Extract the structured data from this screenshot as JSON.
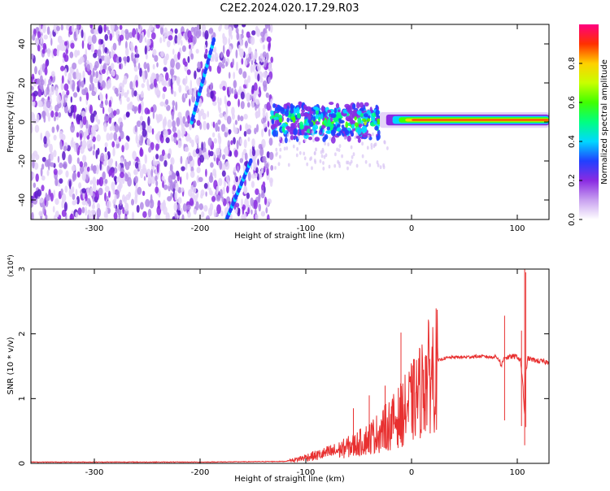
{
  "title": "C2E2.2024.020.17.29.R03",
  "chart_data": [
    {
      "type": "heatmap",
      "xlabel": "Height of straight line (km)",
      "ylabel": "Frequency (Hz)",
      "xlim": [
        -360,
        130
      ],
      "ylim": [
        -50,
        50
      ],
      "x_ticks": [
        -300,
        -200,
        -100,
        0,
        100
      ],
      "y_ticks": [
        -40,
        -20,
        0,
        20,
        40
      ],
      "colorbar": {
        "label": "Normalized spectral amplitude",
        "range": [
          0.0,
          1.0
        ],
        "ticks": [
          0.0,
          0.2,
          0.4,
          0.6,
          0.8
        ],
        "colors": [
          "#ffffff",
          "#c8a0f0",
          "#8a2be2",
          "#2040ff",
          "#00d8ff",
          "#00ff80",
          "#40ff00",
          "#c8ff00",
          "#ffd000",
          "#ff3000",
          "#ff0080"
        ]
      },
      "regions": [
        {
          "x_range": [
            -360,
            -132
          ],
          "freq_range": [
            -50,
            50
          ],
          "description_level": 0.2
        },
        {
          "x_range": [
            -132,
            -30
          ],
          "freq_range": [
            -8,
            10
          ],
          "description_level": 0.45
        },
        {
          "x_range": [
            -30,
            130
          ],
          "freq_range": [
            -1.5,
            2
          ],
          "description_level": 0.9
        }
      ],
      "streaks": [
        {
          "x": [
            -208,
            -187
          ],
          "y": [
            0,
            42
          ]
        },
        {
          "x": [
            -175,
            -152
          ],
          "y": [
            -50,
            -20
          ]
        }
      ]
    },
    {
      "type": "line",
      "xlabel": "Height of straight line (km)",
      "ylabel": "SNR (10 * v/v)",
      "y_multiplier": "(x10⁴)",
      "xlim": [
        -360,
        130
      ],
      "ylim": [
        0,
        3
      ],
      "x_ticks": [
        -300,
        -200,
        -100,
        0,
        100
      ],
      "y_ticks": [
        0,
        1,
        2,
        3
      ],
      "series": [
        {
          "color": "#e83030",
          "x": [
            -360,
            -300,
            -200,
            -120,
            -110,
            -100,
            -90,
            -80,
            -70,
            -60,
            -50,
            -40,
            -30,
            -20,
            -15,
            -10,
            -5,
            0,
            5,
            10,
            15,
            20,
            25,
            30,
            40,
            50,
            60,
            70,
            75,
            80,
            83,
            85,
            88,
            90,
            95,
            100,
            103,
            105,
            107,
            108,
            110,
            115,
            120,
            130
          ],
          "y": [
            0.02,
            0.02,
            0.02,
            0.03,
            0.06,
            0.1,
            0.13,
            0.17,
            0.21,
            0.27,
            0.33,
            0.42,
            0.52,
            0.65,
            0.72,
            0.8,
            0.9,
            1.0,
            1.1,
            1.25,
            1.4,
            1.52,
            1.58,
            1.62,
            1.64,
            1.64,
            1.65,
            1.65,
            1.64,
            1.65,
            1.6,
            1.5,
            1.66,
            1.63,
            1.65,
            1.65,
            1.58,
            1.3,
            0.7,
            1.4,
            1.62,
            1.6,
            1.58,
            1.56
          ]
        }
      ],
      "spikes": [
        {
          "x": -10,
          "y": 2.02
        },
        {
          "x": -55,
          "y": 0.85
        },
        {
          "x": -40,
          "y": 1.05
        },
        {
          "x": -25,
          "y": 1.2
        },
        {
          "x": 13,
          "y": 1.65
        },
        {
          "x": 88,
          "y": 2.28
        },
        {
          "x": 104,
          "y": 2.05
        },
        {
          "x": 107,
          "y": 3.0
        },
        {
          "x": 108,
          "y": 2.95
        }
      ]
    }
  ]
}
